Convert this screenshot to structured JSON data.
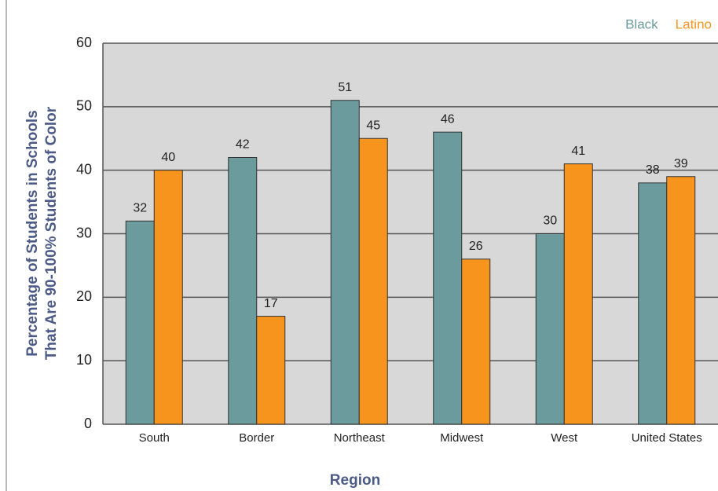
{
  "chart_data": {
    "type": "bar",
    "categories": [
      "South",
      "Border",
      "Northeast",
      "Midwest",
      "West",
      "United States"
    ],
    "series": [
      {
        "name": "Black",
        "color": "#6b9b9c",
        "values": [
          32,
          42,
          51,
          46,
          30,
          38
        ]
      },
      {
        "name": "Latino",
        "color": "#f7941d",
        "values": [
          40,
          17,
          45,
          26,
          41,
          39
        ]
      }
    ],
    "ylim": [
      0,
      60
    ],
    "yticks": [
      0,
      10,
      20,
      30,
      40,
      50,
      60
    ],
    "y_label": [
      "Percentage of Students in Schools",
      "That Are 90-100% Students of Color"
    ],
    "x_label": "Region",
    "grid": true,
    "legend": "top-right"
  }
}
